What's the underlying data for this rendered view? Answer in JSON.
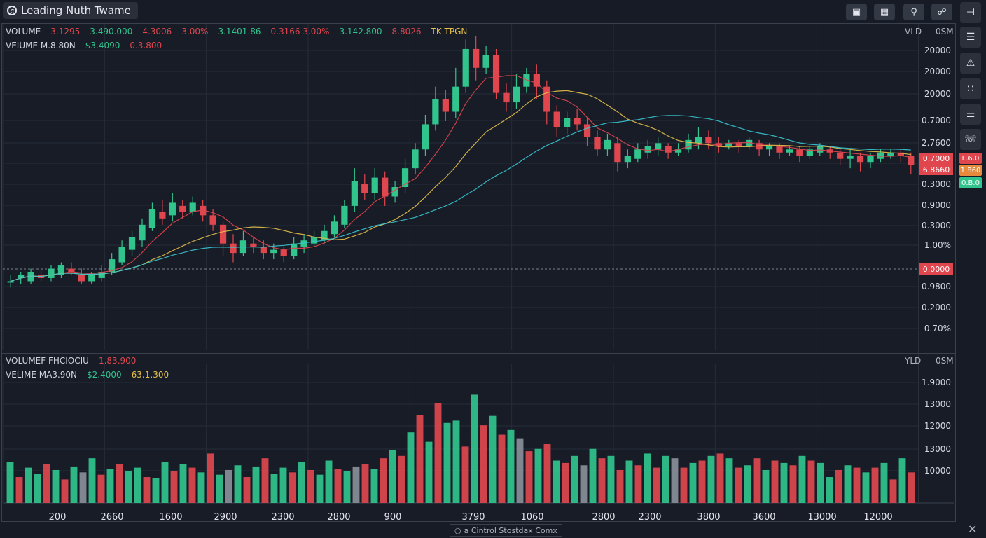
{
  "window": {
    "title": "Leading Nuth Twame"
  },
  "toolbar": {
    "btn1_icon": "chart-window-icon",
    "btn2_icon": "calendar-icon",
    "btn3_icon": "search-icon",
    "btn4_icon": "link-icon"
  },
  "main_legend": {
    "row1": [
      {
        "text": "VOLUME",
        "color": "w"
      },
      {
        "text": "3.1295",
        "color": "r"
      },
      {
        "text": "3.490.000",
        "color": "g"
      },
      {
        "text": "4.3006",
        "color": "r"
      },
      {
        "text": "3.00%",
        "color": "r"
      },
      {
        "text": "3.1401.86",
        "color": "g"
      },
      {
        "text": "0.3166 3.00%",
        "color": "r"
      },
      {
        "text": "3.142.800",
        "color": "g"
      },
      {
        "text": "8.8026",
        "color": "r"
      },
      {
        "text": "TK TPGN",
        "color": "y"
      }
    ],
    "row2": [
      {
        "text": "VEIUME M.8.80N",
        "color": "w"
      },
      {
        "text": "$3.4090",
        "color": "g"
      },
      {
        "text": "0.3.800",
        "color": "r"
      }
    ],
    "corner_left": "VLD",
    "corner_right": "0SM"
  },
  "volume_legend": {
    "row1": [
      {
        "text": "VOLUMEF FHCIOCIU",
        "color": "w"
      },
      {
        "text": "1.83.900",
        "color": "r"
      }
    ],
    "row2": [
      {
        "text": "VELIME MA3.90N",
        "color": "w"
      },
      {
        "text": "$2.4000",
        "color": "g"
      },
      {
        "text": "63.1.300",
        "color": "y"
      }
    ],
    "corner_left": "YLD",
    "corner_right": "0SM"
  },
  "price_axis_labels": [
    "20000",
    "20000",
    "20000",
    "0.7000",
    "2.7600",
    "0.7000",
    "0.3000",
    "0.9000",
    "0.3000",
    "1.00%",
    "0.9800",
    "0.2000",
    "0.70%"
  ],
  "price_tags": [
    {
      "text": "0.7000",
      "color": "#e0464e"
    },
    {
      "text": "6.8660",
      "color": "#e0464e"
    },
    {
      "text": "0.0000",
      "color": "#e0464e"
    }
  ],
  "side_tags": [
    {
      "text": "L.6.0",
      "color": "#e0464e"
    },
    {
      "text": "1.860",
      "color": "#e88a3c"
    },
    {
      "text": "0.B.0",
      "color": "#31c48d"
    }
  ],
  "volume_axis_labels": [
    "1.9000",
    "13000",
    "12000",
    "13000",
    "10000"
  ],
  "x_axis_labels": [
    "200",
    "2660",
    "1600",
    "2900",
    "2300",
    "2800",
    "900",
    "3790",
    "1060",
    "2800",
    "2300",
    "3800",
    "3600",
    "13000",
    "12000"
  ],
  "right_tools": [
    "minus-icon",
    "list-icon",
    "alert-icon",
    "grid-icon",
    "split-icon",
    "phone-icon"
  ],
  "footer": {
    "text": "a Cintrol Stostdax Comx"
  },
  "colors": {
    "up": "#31c48d",
    "down": "#e0464e",
    "neutral": "#8a8f98",
    "ma_fast": "#e0464e",
    "ma_mid": "#e6c04a",
    "ma_slow": "#38c6d0"
  },
  "chart_data": [
    {
      "type": "candlestick",
      "title": "",
      "xlabel": "",
      "ylabel": "",
      "note": "Price series approximated from the rendered chart; y in chart percent units (0 bottom to 100 top of the price range).",
      "ylim": [
        0,
        100
      ],
      "candles": [
        [
          22,
          22,
          20,
          24
        ],
        [
          23,
          24,
          21,
          25
        ],
        [
          22,
          25,
          21,
          26
        ],
        [
          24,
          23,
          22,
          26
        ],
        [
          23,
          26,
          22,
          27
        ],
        [
          24,
          27,
          23,
          28
        ],
        [
          26,
          25,
          24,
          28
        ],
        [
          24,
          22,
          21,
          26
        ],
        [
          22,
          24,
          21,
          25
        ],
        [
          23,
          25,
          22,
          27
        ],
        [
          25,
          29,
          24,
          31
        ],
        [
          28,
          33,
          27,
          35
        ],
        [
          32,
          36,
          30,
          38
        ],
        [
          35,
          40,
          33,
          42
        ],
        [
          39,
          45,
          38,
          47
        ],
        [
          44,
          42,
          40,
          48
        ],
        [
          43,
          47,
          41,
          50
        ],
        [
          46,
          44,
          42,
          48
        ],
        [
          44,
          47,
          43,
          49
        ],
        [
          46,
          43,
          41,
          48
        ],
        [
          43,
          40,
          38,
          45
        ],
        [
          40,
          34,
          30,
          41
        ],
        [
          34,
          31,
          28,
          37
        ],
        [
          31,
          35,
          30,
          38
        ],
        [
          34,
          33,
          31,
          36
        ],
        [
          33,
          31,
          29,
          35
        ],
        [
          31,
          32,
          29,
          34
        ],
        [
          32,
          30,
          28,
          33
        ],
        [
          30,
          34,
          29,
          36
        ],
        [
          33,
          35,
          31,
          37
        ],
        [
          34,
          36,
          33,
          38
        ],
        [
          35,
          38,
          34,
          40
        ],
        [
          37,
          41,
          36,
          43
        ],
        [
          40,
          46,
          39,
          48
        ],
        [
          46,
          54,
          44,
          58
        ],
        [
          53,
          50,
          48,
          56
        ],
        [
          50,
          55,
          48,
          58
        ],
        [
          55,
          49,
          46,
          57
        ],
        [
          49,
          52,
          47,
          54
        ],
        [
          52,
          58,
          50,
          61
        ],
        [
          58,
          64,
          56,
          66
        ],
        [
          64,
          72,
          62,
          75
        ],
        [
          72,
          80,
          70,
          84
        ],
        [
          80,
          76,
          73,
          83
        ],
        [
          76,
          84,
          74,
          90
        ],
        [
          84,
          96,
          82,
          99
        ],
        [
          96,
          90,
          86,
          100
        ],
        [
          90,
          94,
          88,
          97
        ],
        [
          94,
          82,
          80,
          96
        ],
        [
          82,
          79,
          76,
          85
        ],
        [
          79,
          84,
          77,
          88
        ],
        [
          84,
          88,
          82,
          90
        ],
        [
          88,
          84,
          80,
          91
        ],
        [
          84,
          76,
          72,
          86
        ],
        [
          76,
          71,
          68,
          78
        ],
        [
          71,
          74,
          69,
          76
        ],
        [
          74,
          72,
          70,
          77
        ],
        [
          72,
          68,
          65,
          74
        ],
        [
          68,
          64,
          62,
          70
        ],
        [
          64,
          67,
          62,
          69
        ],
        [
          66,
          60,
          57,
          68
        ],
        [
          60,
          62,
          58,
          64
        ],
        [
          61,
          64,
          60,
          66
        ],
        [
          63,
          65,
          61,
          67
        ],
        [
          64,
          66,
          62,
          68
        ],
        [
          65,
          63,
          61,
          66
        ],
        [
          63,
          64,
          62,
          66
        ],
        [
          64,
          67,
          63,
          69
        ],
        [
          66,
          68,
          64,
          71
        ],
        [
          68,
          66,
          64,
          70
        ],
        [
          66,
          65,
          63,
          68
        ],
        [
          65,
          66,
          64,
          67
        ],
        [
          66,
          65,
          63,
          67
        ],
        [
          65,
          67,
          64,
          68
        ],
        [
          66,
          64,
          62,
          67
        ],
        [
          64,
          65,
          62,
          66
        ],
        [
          65,
          63,
          61,
          66
        ],
        [
          63,
          64,
          62,
          65
        ],
        [
          64,
          62,
          60,
          65
        ],
        [
          62,
          64,
          61,
          65
        ],
        [
          63,
          65,
          62,
          66
        ],
        [
          64,
          63,
          61,
          65
        ],
        [
          63,
          61,
          59,
          64
        ],
        [
          61,
          62,
          58,
          64
        ],
        [
          62,
          60,
          57,
          63
        ],
        [
          60,
          62,
          58,
          63
        ],
        [
          61,
          63,
          60,
          64
        ],
        [
          62,
          63,
          61,
          64
        ],
        [
          63,
          62,
          60,
          64
        ],
        [
          62,
          59,
          56,
          63
        ]
      ]
    },
    {
      "type": "bar",
      "title": "Volume",
      "xlabel": "",
      "ylabel": "",
      "ylim": [
        0,
        100
      ],
      "values": [
        35,
        22,
        30,
        25,
        33,
        28,
        20,
        31,
        26,
        38,
        24,
        29,
        33,
        27,
        30,
        22,
        21,
        35,
        27,
        33,
        30,
        26,
        42,
        24,
        28,
        32,
        22,
        31,
        38,
        25,
        30,
        26,
        35,
        28,
        24,
        36,
        29,
        27,
        31,
        33,
        29,
        38,
        45,
        40,
        60,
        75,
        52,
        85,
        68,
        70,
        48,
        92,
        66,
        74,
        58,
        62,
        55,
        44,
        46,
        50,
        36,
        34,
        40,
        32,
        46,
        38,
        40,
        28,
        36,
        32,
        42,
        30,
        40,
        38,
        30,
        34,
        36,
        40,
        42,
        38,
        30,
        32,
        38,
        28,
        36,
        34,
        32,
        40,
        36,
        34,
        22,
        28,
        32,
        30,
        26,
        30,
        34,
        20,
        38,
        26
      ],
      "directions": [
        "up",
        "down",
        "up",
        "up",
        "down",
        "up",
        "down",
        "up",
        "neutral",
        "up",
        "down",
        "up",
        "down",
        "up",
        "up",
        "down",
        "up",
        "up",
        "down",
        "up",
        "down",
        "up",
        "down",
        "up",
        "neutral",
        "up",
        "down",
        "up",
        "down",
        "up",
        "up",
        "down",
        "up",
        "down",
        "up",
        "up",
        "down",
        "up",
        "neutral",
        "down",
        "up",
        "down",
        "up",
        "down",
        "up",
        "down",
        "up",
        "down",
        "up",
        "up",
        "down",
        "up",
        "down",
        "up",
        "down",
        "up",
        "neutral",
        "down",
        "up",
        "down",
        "up",
        "down",
        "up",
        "neutral",
        "up",
        "down",
        "up",
        "down",
        "up",
        "down",
        "up",
        "down",
        "up",
        "neutral",
        "down",
        "up",
        "down",
        "up",
        "down",
        "up",
        "down",
        "up",
        "down",
        "up",
        "down",
        "up",
        "down",
        "up",
        "down",
        "up",
        "up",
        "down",
        "up",
        "down",
        "up",
        "down",
        "up",
        "down",
        "up",
        "down"
      ]
    }
  ]
}
